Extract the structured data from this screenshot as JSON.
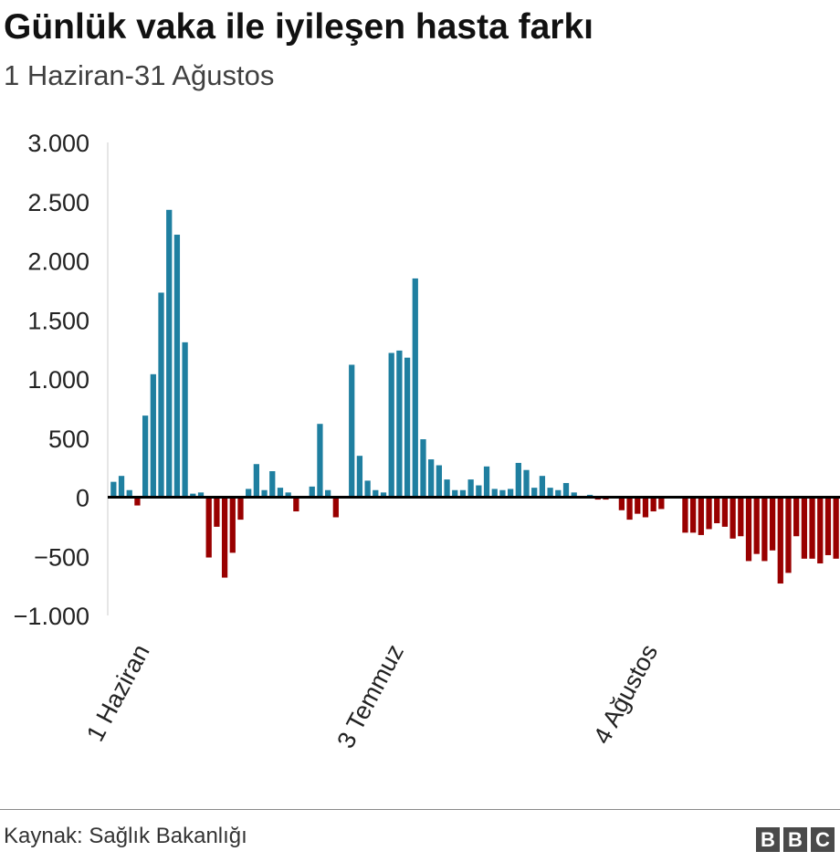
{
  "header": {
    "title": "Günlük vaka ile iyileşen hasta farkı",
    "subtitle": "1 Haziran-31 Ağustos"
  },
  "footer": {
    "source": "Kaynak: Sağlık Bakanlığı",
    "logo": [
      "B",
      "B",
      "C"
    ]
  },
  "colors": {
    "positive": "#1f7fa0",
    "negative": "#990000",
    "zero_line": "#000000",
    "axis": "#cccccc",
    "text": "#222222"
  },
  "chart_data": {
    "type": "bar",
    "title": "Günlük vaka ile iyileşen hasta farkı",
    "subtitle": "1 Haziran-31 Ağustos",
    "xlabel": "",
    "ylabel": "",
    "ylim": [
      -1000,
      3000
    ],
    "y_ticks": [
      3000,
      2500,
      2000,
      1500,
      1000,
      500,
      0,
      -500,
      -1000
    ],
    "y_tick_labels": [
      "3.000",
      "2.500",
      "2.000",
      "1.500",
      "1.000",
      "500",
      "0",
      "−500",
      "−1.000"
    ],
    "x_tick_labels": [
      {
        "label": "1 Haziran",
        "index": 3
      },
      {
        "label": "3 Temmuz",
        "index": 35
      },
      {
        "label": "4 Ağustos",
        "index": 67
      }
    ],
    "grid": false,
    "legend": "none",
    "values": [
      130,
      180,
      60,
      -70,
      690,
      1040,
      1730,
      2430,
      2220,
      1310,
      30,
      40,
      -510,
      -250,
      -680,
      -470,
      -190,
      70,
      280,
      60,
      220,
      80,
      40,
      -120,
      10,
      90,
      620,
      60,
      -170,
      10,
      1120,
      350,
      140,
      60,
      40,
      1220,
      1240,
      1180,
      1850,
      490,
      320,
      270,
      150,
      60,
      60,
      150,
      100,
      260,
      70,
      60,
      70,
      290,
      230,
      80,
      180,
      80,
      60,
      120,
      40,
      10,
      20,
      -20,
      -20,
      10,
      -110,
      -190,
      -140,
      -170,
      -120,
      -100,
      10,
      0,
      -300,
      -300,
      -320,
      -270,
      -220,
      -250,
      -350,
      -330,
      -540,
      -480,
      -540,
      -450,
      -730,
      -640,
      -330,
      -520,
      -520,
      -560,
      -490,
      -520
    ]
  }
}
